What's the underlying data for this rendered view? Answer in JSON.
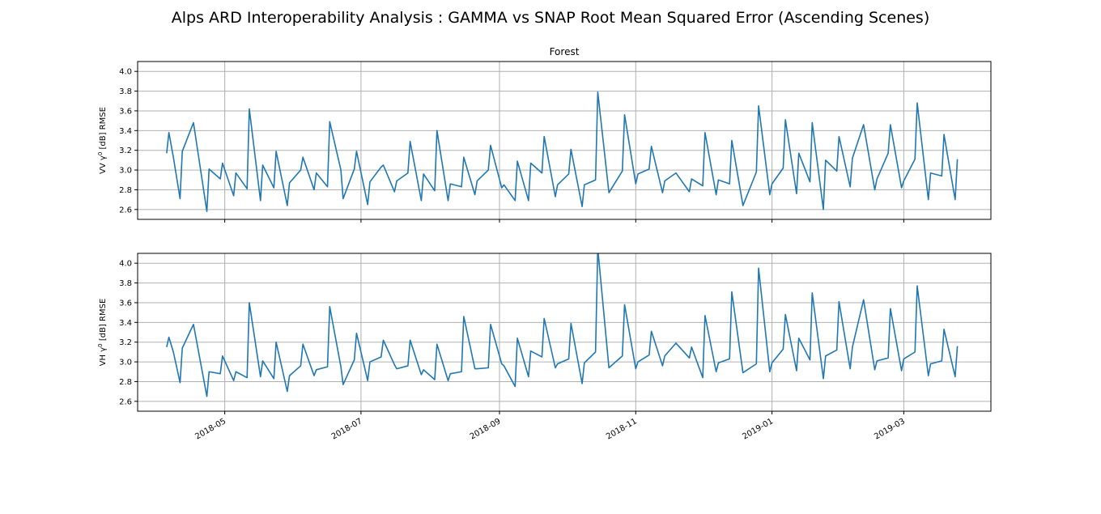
{
  "figure": {
    "title": "Alps ARD Interoperability Analysis : GAMMA vs SNAP Root Mean Squared Error (Ascending Scenes)"
  },
  "chart_data": [
    {
      "type": "line",
      "title": "Forest",
      "xlabel": "",
      "ylabel": "VV γ⁰ [dB] RMSE",
      "ylabel_parts": {
        "pre": "VV γ",
        "sup": "0",
        "post": " [dB] RMSE"
      },
      "xlim": [
        "2018-03-23",
        "2019-04-09"
      ],
      "ylim": [
        2.5,
        4.1
      ],
      "yticks": [
        2.6,
        2.8,
        3.0,
        3.2,
        3.4,
        3.6,
        3.8,
        4.0
      ],
      "ytick_labels": [
        "2.6",
        "2.8",
        "3.0",
        "3.2",
        "3.4",
        "3.6",
        "3.8",
        "4.0"
      ],
      "xticks": [
        "2018-05-01",
        "2018-07-01",
        "2018-09-01",
        "2018-11-01",
        "2019-01-01",
        "2019-03-01"
      ],
      "xtick_labels": [
        "",
        "",
        "",
        "",
        "",
        ""
      ],
      "grid": true,
      "line_color": "#1f77b4",
      "series": [
        {
          "x": [
            "2018-04-05",
            "2018-04-06",
            "2018-04-08",
            "2018-04-11",
            "2018-04-12",
            "2018-04-17",
            "2018-04-23",
            "2018-04-24",
            "2018-04-29",
            "2018-04-30",
            "2018-05-05",
            "2018-05-06",
            "2018-05-11",
            "2018-05-12",
            "2018-05-17",
            "2018-05-18",
            "2018-05-23",
            "2018-05-24",
            "2018-05-29",
            "2018-05-30",
            "2018-06-04",
            "2018-06-05",
            "2018-06-10",
            "2018-06-11",
            "2018-06-16",
            "2018-06-17",
            "2018-06-22",
            "2018-06-23",
            "2018-06-28",
            "2018-06-29",
            "2018-07-04",
            "2018-07-05",
            "2018-07-10",
            "2018-07-11",
            "2018-07-16",
            "2018-07-17",
            "2018-07-22",
            "2018-07-23",
            "2018-07-28",
            "2018-07-29",
            "2018-08-03",
            "2018-08-04",
            "2018-08-09",
            "2018-08-10",
            "2018-08-15",
            "2018-08-16",
            "2018-08-21",
            "2018-08-22",
            "2018-08-27",
            "2018-08-28",
            "2018-09-02",
            "2018-09-03",
            "2018-09-08",
            "2018-09-09",
            "2018-09-14",
            "2018-09-15",
            "2018-09-20",
            "2018-09-21",
            "2018-09-26",
            "2018-09-27",
            "2018-10-02",
            "2018-10-03",
            "2018-10-08",
            "2018-10-09",
            "2018-10-14",
            "2018-10-15",
            "2018-10-20",
            "2018-10-26",
            "2018-10-27",
            "2018-11-01",
            "2018-11-02",
            "2018-11-07",
            "2018-11-08",
            "2018-11-13",
            "2018-11-14",
            "2018-11-19",
            "2018-11-25",
            "2018-11-26",
            "2018-12-01",
            "2018-12-02",
            "2018-12-07",
            "2018-12-08",
            "2018-12-13",
            "2018-12-14",
            "2018-12-19",
            "2018-12-25",
            "2018-12-26",
            "2018-12-31",
            "2019-01-01",
            "2019-01-06",
            "2019-01-07",
            "2019-01-12",
            "2019-01-13",
            "2019-01-18",
            "2019-01-19",
            "2019-01-24",
            "2019-01-25",
            "2019-01-30",
            "2019-01-31",
            "2019-02-05",
            "2019-02-06",
            "2019-02-11",
            "2019-02-16",
            "2019-02-17",
            "2019-02-22",
            "2019-02-23",
            "2019-02-28",
            "2019-03-01",
            "2019-03-06",
            "2019-03-07",
            "2019-03-12",
            "2019-03-13",
            "2019-03-18",
            "2019-03-19",
            "2019-03-24",
            "2019-03-25"
          ],
          "y": [
            3.17,
            3.38,
            3.13,
            2.71,
            3.19,
            3.48,
            2.58,
            3.01,
            2.91,
            3.07,
            2.74,
            2.97,
            2.81,
            3.62,
            2.69,
            3.05,
            2.82,
            3.19,
            2.64,
            2.87,
            3.0,
            3.13,
            2.8,
            2.97,
            2.83,
            3.49,
            3.0,
            2.71,
            3.01,
            3.19,
            2.65,
            2.88,
            3.03,
            3.05,
            2.78,
            2.89,
            2.97,
            3.29,
            2.69,
            2.96,
            2.79,
            3.4,
            2.69,
            2.86,
            2.83,
            3.13,
            2.75,
            2.89,
            3.0,
            3.25,
            2.82,
            2.85,
            2.69,
            3.09,
            2.69,
            3.07,
            2.97,
            3.34,
            2.73,
            2.85,
            2.96,
            3.21,
            2.63,
            2.85,
            2.9,
            3.79,
            2.77,
            2.99,
            3.56,
            2.86,
            2.96,
            3.01,
            3.24,
            2.77,
            2.89,
            2.97,
            2.78,
            2.91,
            2.84,
            3.38,
            2.75,
            2.9,
            2.86,
            3.3,
            2.64,
            2.98,
            3.65,
            2.75,
            2.86,
            3.02,
            3.51,
            2.76,
            3.17,
            2.88,
            3.48,
            2.6,
            3.1,
            2.99,
            3.34,
            2.83,
            3.12,
            3.46,
            2.8,
            2.91,
            3.17,
            3.46,
            2.82,
            2.89,
            3.11,
            3.68,
            2.7,
            2.97,
            2.94,
            3.36,
            2.7,
            3.11
          ]
        }
      ]
    },
    {
      "type": "line",
      "title": "",
      "xlabel": "",
      "ylabel": "VH γ⁰ [dB] RMSE",
      "ylabel_parts": {
        "pre": "VH γ",
        "sup": "0",
        "post": " [dB] RMSE"
      },
      "xlim": [
        "2018-03-23",
        "2019-04-09"
      ],
      "ylim": [
        2.5,
        4.1
      ],
      "yticks": [
        2.6,
        2.8,
        3.0,
        3.2,
        3.4,
        3.6,
        3.8,
        4.0
      ],
      "ytick_labels": [
        "2.6",
        "2.8",
        "3.0",
        "3.2",
        "3.4",
        "3.6",
        "3.8",
        "4.0"
      ],
      "xticks": [
        "2018-05-01",
        "2018-07-01",
        "2018-09-01",
        "2018-11-01",
        "2019-01-01",
        "2019-03-01"
      ],
      "xtick_labels": [
        "2018-05",
        "2018-07",
        "2018-09",
        "2018-11",
        "2019-01",
        "2019-03"
      ],
      "grid": true,
      "line_color": "#1f77b4",
      "series": [
        {
          "x": [
            "2018-04-05",
            "2018-04-06",
            "2018-04-08",
            "2018-04-11",
            "2018-04-12",
            "2018-04-17",
            "2018-04-23",
            "2018-04-24",
            "2018-04-29",
            "2018-04-30",
            "2018-05-05",
            "2018-05-06",
            "2018-05-11",
            "2018-05-12",
            "2018-05-17",
            "2018-05-18",
            "2018-05-23",
            "2018-05-24",
            "2018-05-29",
            "2018-05-30",
            "2018-06-04",
            "2018-06-05",
            "2018-06-10",
            "2018-06-11",
            "2018-06-16",
            "2018-06-17",
            "2018-06-22",
            "2018-06-23",
            "2018-06-28",
            "2018-06-29",
            "2018-07-04",
            "2018-07-05",
            "2018-07-10",
            "2018-07-11",
            "2018-07-16",
            "2018-07-17",
            "2018-07-22",
            "2018-07-23",
            "2018-07-28",
            "2018-07-29",
            "2018-08-03",
            "2018-08-04",
            "2018-08-09",
            "2018-08-10",
            "2018-08-15",
            "2018-08-16",
            "2018-08-21",
            "2018-08-22",
            "2018-08-27",
            "2018-08-28",
            "2018-09-02",
            "2018-09-03",
            "2018-09-08",
            "2018-09-09",
            "2018-09-14",
            "2018-09-15",
            "2018-09-20",
            "2018-09-21",
            "2018-09-26",
            "2018-09-27",
            "2018-10-02",
            "2018-10-03",
            "2018-10-08",
            "2018-10-09",
            "2018-10-14",
            "2018-10-15",
            "2018-10-20",
            "2018-10-26",
            "2018-10-27",
            "2018-11-01",
            "2018-11-02",
            "2018-11-07",
            "2018-11-08",
            "2018-11-13",
            "2018-11-14",
            "2018-11-19",
            "2018-11-25",
            "2018-11-26",
            "2018-12-01",
            "2018-12-02",
            "2018-12-07",
            "2018-12-08",
            "2018-12-13",
            "2018-12-14",
            "2018-12-19",
            "2018-12-25",
            "2018-12-26",
            "2018-12-31",
            "2019-01-01",
            "2019-01-06",
            "2019-01-07",
            "2019-01-12",
            "2019-01-13",
            "2019-01-18",
            "2019-01-19",
            "2019-01-24",
            "2019-01-25",
            "2019-01-30",
            "2019-01-31",
            "2019-02-05",
            "2019-02-06",
            "2019-02-11",
            "2019-02-16",
            "2019-02-17",
            "2019-02-22",
            "2019-02-23",
            "2019-02-28",
            "2019-03-01",
            "2019-03-06",
            "2019-03-07",
            "2019-03-12",
            "2019-03-13",
            "2019-03-18",
            "2019-03-19",
            "2019-03-24",
            "2019-03-25"
          ],
          "y": [
            3.15,
            3.25,
            3.1,
            2.79,
            3.14,
            3.38,
            2.65,
            2.9,
            2.88,
            3.06,
            2.81,
            2.9,
            2.84,
            3.6,
            2.85,
            3.01,
            2.83,
            3.2,
            2.7,
            2.86,
            2.96,
            3.18,
            2.86,
            2.92,
            2.95,
            3.56,
            2.95,
            2.77,
            3.02,
            3.29,
            2.81,
            3.0,
            3.05,
            3.22,
            2.97,
            2.93,
            2.96,
            3.22,
            2.87,
            2.92,
            2.82,
            3.18,
            2.81,
            2.88,
            2.9,
            3.46,
            2.93,
            2.93,
            2.94,
            3.38,
            2.98,
            2.96,
            2.75,
            3.24,
            2.85,
            3.11,
            3.05,
            3.44,
            2.94,
            2.98,
            3.03,
            3.39,
            2.78,
            2.99,
            3.1,
            4.15,
            2.94,
            3.06,
            3.58,
            2.93,
            3.0,
            3.07,
            3.31,
            2.96,
            3.06,
            3.19,
            3.04,
            3.15,
            2.84,
            3.47,
            2.9,
            2.99,
            3.03,
            3.71,
            2.89,
            2.98,
            3.95,
            2.9,
            2.99,
            3.13,
            3.48,
            2.91,
            3.24,
            3.02,
            3.7,
            2.83,
            3.06,
            3.12,
            3.61,
            2.93,
            3.15,
            3.63,
            2.92,
            3.01,
            3.04,
            3.54,
            2.91,
            3.03,
            3.1,
            3.77,
            2.86,
            2.98,
            3.01,
            3.33,
            2.85,
            3.16
          ]
        }
      ]
    }
  ]
}
